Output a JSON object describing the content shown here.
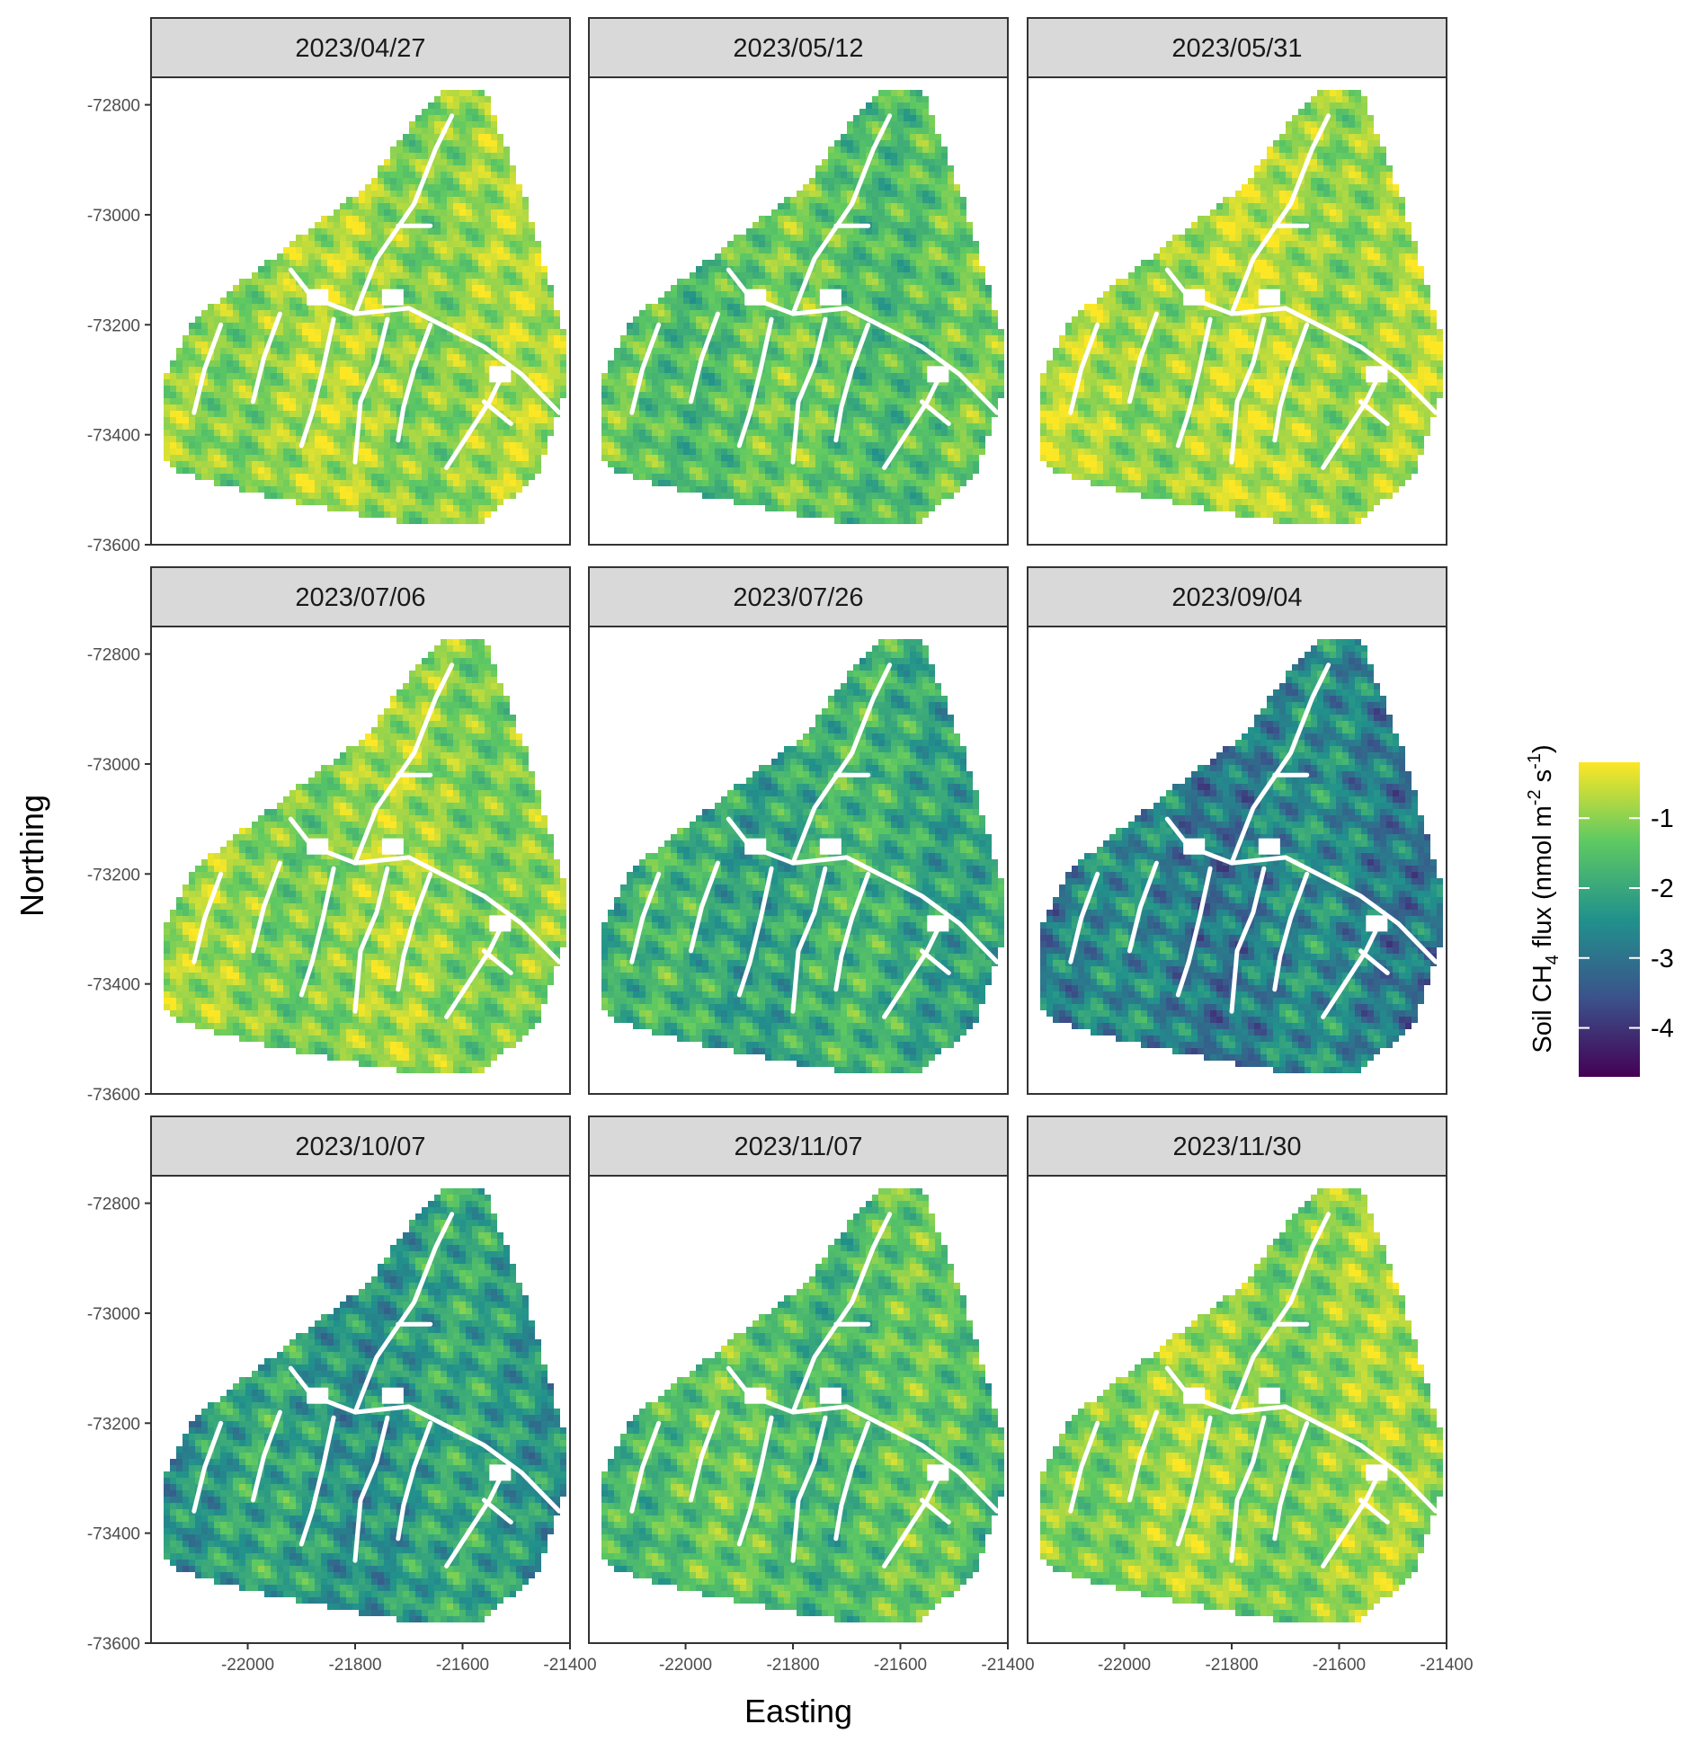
{
  "chart_data": {
    "type": "heatmap",
    "facet_labels": [
      "2023/04/27",
      "2023/05/12",
      "2023/05/31",
      "2023/07/06",
      "2023/07/26",
      "2023/09/04",
      "2023/10/07",
      "2023/11/07",
      "2023/11/30"
    ],
    "facet_mean_flux": [
      -0.9,
      -1.4,
      -0.8,
      -1.0,
      -1.9,
      -2.7,
      -2.2,
      -1.5,
      -1.0
    ],
    "xlabel": "Easting",
    "ylabel": "Northing",
    "xlim": [
      -22180,
      -21400
    ],
    "ylim": [
      -73600,
      -72750
    ],
    "x_ticks": [
      -22000,
      -21800,
      -21600,
      -21400
    ],
    "x_tick_labels": [
      "-22000",
      "-21800",
      "-21600",
      "-21400"
    ],
    "y_ticks": [
      -72800,
      -73000,
      -73200,
      -73400,
      -73600
    ],
    "y_tick_labels": [
      "-72800",
      "-73000",
      "-73200",
      "-73400",
      "-73600"
    ],
    "legend": {
      "title_main": "Soil CH",
      "title_sub": "4",
      "title_mid": " flux (nmol m",
      "title_sup1": "-2",
      "title_mid2": " s",
      "title_sup2": "-1",
      "title_end": ")",
      "ticks": [
        -1,
        -2,
        -3,
        -4
      ],
      "tick_labels": [
        "-1",
        "-2",
        "-3",
        "-4"
      ],
      "range": [
        -4.7,
        -0.2
      ],
      "colormap": "viridis",
      "placement": "right"
    },
    "colors": {
      "strip_fill": "#d9d9d9",
      "panel_border": "#333333",
      "viridis": [
        "#440154",
        "#3b528b",
        "#21918c",
        "#5ec962",
        "#fde725"
      ],
      "stream": "#ffffff"
    }
  }
}
